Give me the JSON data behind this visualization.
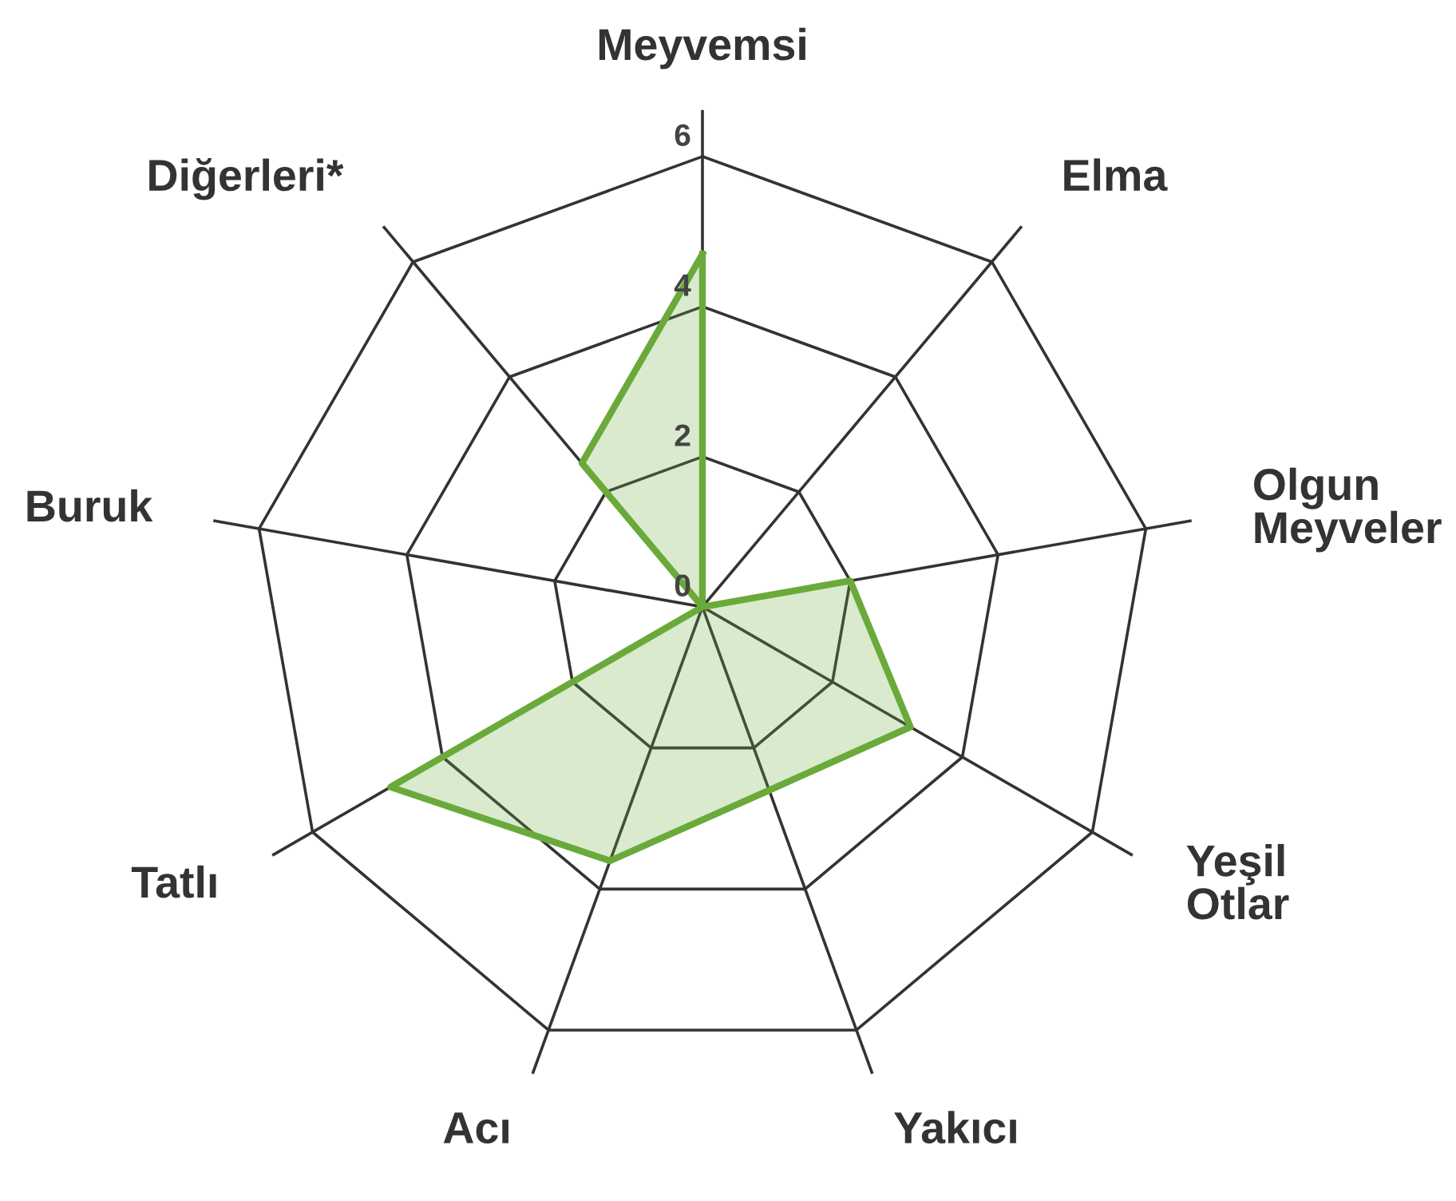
{
  "chart_data": {
    "type": "radar",
    "categories": [
      "Meyvemsi",
      "Elma",
      "Olgun\nMeyveler",
      "Yeşil\nOtlar",
      "Yakıcı",
      "Acı",
      "Tatlı",
      "Buruk",
      "Diğerleri*"
    ],
    "series": [
      {
        "color": "#6aaa3a",
        "values": [
          4.7,
          0,
          2.0,
          3.2,
          2.6,
          3.6,
          4.8,
          0,
          2.5
        ]
      }
    ],
    "ylim": [
      0,
      6
    ],
    "yticks": [
      0,
      2,
      4,
      6
    ],
    "grid": true
  }
}
